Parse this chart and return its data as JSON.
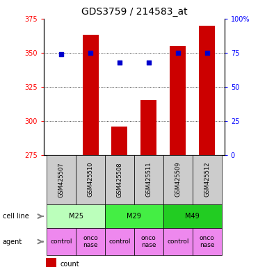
{
  "title": "GDS3759 / 214583_at",
  "samples": [
    "GSM425507",
    "GSM425510",
    "GSM425508",
    "GSM425511",
    "GSM425509",
    "GSM425512"
  ],
  "counts": [
    275,
    363,
    296,
    315,
    355,
    370
  ],
  "percentile_ranks": [
    74,
    75,
    68,
    68,
    75,
    75
  ],
  "ylim_left": [
    275,
    375
  ],
  "ylim_right": [
    0,
    100
  ],
  "yticks_left": [
    275,
    300,
    325,
    350,
    375
  ],
  "yticks_right": [
    0,
    25,
    50,
    75,
    100
  ],
  "ytick_labels_right": [
    "0",
    "25",
    "50",
    "75",
    "100%"
  ],
  "bar_color": "#cc0000",
  "dot_color": "#0000cc",
  "bar_bottom": 275,
  "cell_lines": [
    {
      "label": "M25",
      "cols": [
        0,
        1
      ],
      "color": "#bbffbb"
    },
    {
      "label": "M29",
      "cols": [
        2,
        3
      ],
      "color": "#44ee44"
    },
    {
      "label": "M49",
      "cols": [
        4,
        5
      ],
      "color": "#22cc22"
    }
  ],
  "agents": [
    "control",
    "onconase",
    "control",
    "onconase",
    "control",
    "onconase"
  ],
  "agent_color": "#ee88ee",
  "sample_bg_color": "#cccccc",
  "title_fontsize": 10,
  "tick_fontsize": 7,
  "sample_label_fontsize": 6,
  "cell_agent_fontsize": 7,
  "legend_fontsize": 7
}
